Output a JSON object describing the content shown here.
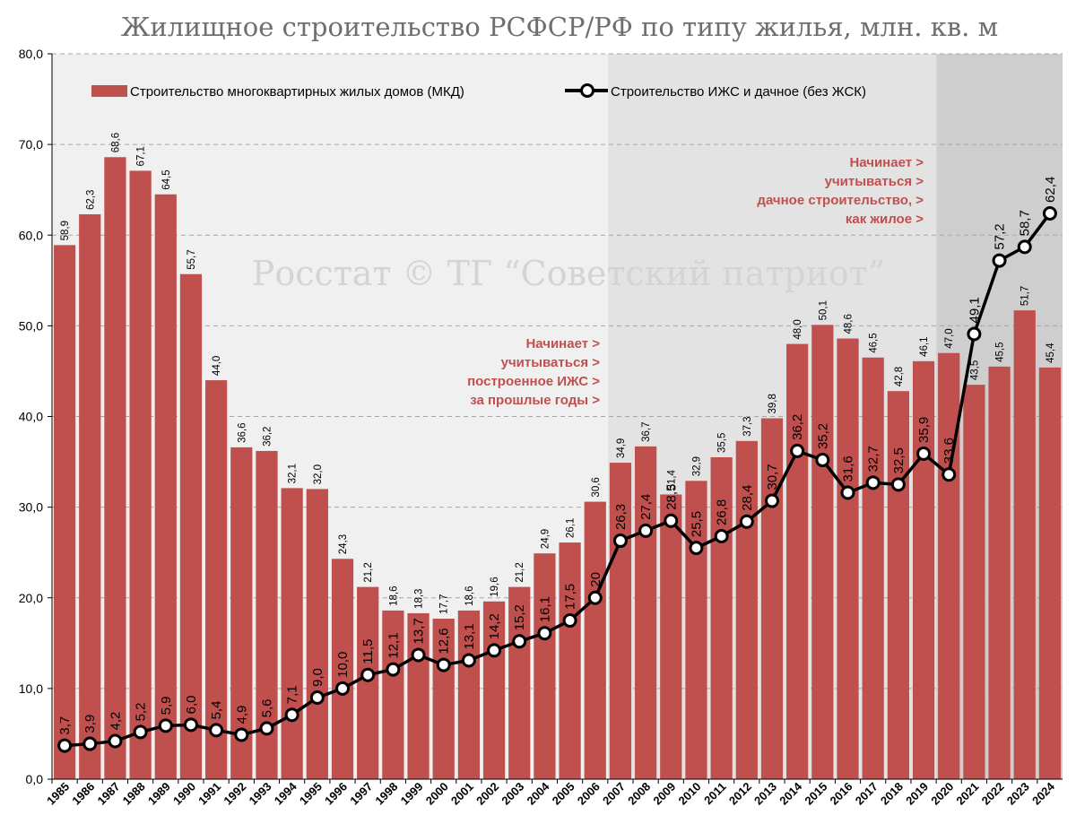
{
  "chart_data": {
    "type": "bar",
    "title": "Жилищное строительство РСФСР/РФ по типу жилья, млн. кв. м",
    "watermark": "Росстат © ТГ “Советский патриот”",
    "categories": [
      "1985",
      "1986",
      "1987",
      "1988",
      "1989",
      "1990",
      "1991",
      "1992",
      "1993",
      "1994",
      "1995",
      "1996",
      "1997",
      "1998",
      "1999",
      "2000",
      "2001",
      "2002",
      "2003",
      "2004",
      "2005",
      "2006",
      "2007",
      "2008",
      "2009",
      "2010",
      "2011",
      "2012",
      "2013",
      "2014",
      "2015",
      "2016",
      "2017",
      "2018",
      "2019",
      "2020",
      "2021",
      "2022",
      "2023",
      "2024"
    ],
    "series": [
      {
        "name": "Строительство многоквартирных жилых домов (МКД)",
        "kind": "bar",
        "color": "#c0504d",
        "values": [
          58.9,
          62.3,
          68.6,
          67.1,
          64.5,
          55.7,
          44.0,
          36.6,
          36.2,
          32.1,
          32.0,
          24.3,
          21.2,
          18.6,
          18.3,
          17.7,
          18.6,
          19.6,
          21.2,
          24.9,
          26.1,
          30.6,
          34.9,
          36.7,
          31.4,
          32.9,
          35.5,
          37.3,
          39.8,
          48.0,
          50.1,
          48.6,
          46.5,
          42.8,
          46.1,
          47.0,
          43.5,
          45.5,
          51.7,
          45.4
        ],
        "labels": [
          "58,9",
          "62,3",
          "68,6",
          "67,1",
          "64,5",
          "55,7",
          "44,0",
          "36,6",
          "36,2",
          "32,1",
          "32,0",
          "24,3",
          "21,2",
          "18,6",
          "18,3",
          "17,7",
          "18,6",
          "19,6",
          "21,2",
          "24,9",
          "26,1",
          "30,6",
          "34,9",
          "36,7",
          "31,4",
          "32,9",
          "35,5",
          "37,3",
          "39,8",
          "48,0",
          "50,1",
          "48,6",
          "46,5",
          "42,8",
          "46,1",
          "47,0",
          "43,5",
          "45,5",
          "51,7",
          "45,4"
        ]
      },
      {
        "name": "Строительство ИЖС и дачное (без ЖСК)",
        "kind": "line",
        "color": "#000000",
        "values": [
          3.7,
          3.9,
          4.2,
          5.2,
          5.9,
          6.0,
          5.4,
          4.9,
          5.6,
          7.1,
          9.0,
          10.0,
          11.5,
          12.1,
          13.7,
          12.6,
          13.1,
          14.2,
          15.2,
          16.1,
          17.5,
          20,
          26.3,
          27.4,
          28.5,
          25.5,
          26.8,
          28.4,
          30.7,
          36.2,
          35.2,
          31.6,
          32.7,
          32.5,
          35.9,
          33.6,
          49.1,
          57.2,
          58.7,
          62.4
        ],
        "labels": [
          "3,7",
          "3,9",
          "4,2",
          "5,2",
          "5,9",
          "6,0",
          "5,4",
          "4,9",
          "5,6",
          "7,1",
          "9,0",
          "10,0",
          "11,5",
          "12,1",
          "13,7",
          "12,6",
          "13,1",
          "14,2",
          "15,2",
          "16,1",
          "17,5",
          "20",
          "26,3",
          "27,4",
          "28,5",
          "25,5",
          "26,8",
          "28,4",
          "30,7",
          "36,2",
          "35,2",
          "31,6",
          "32,7",
          "32,5",
          "35,9",
          "33,6",
          "49,1",
          "57,2",
          "58,7",
          "62,4"
        ]
      }
    ],
    "ylim": [
      0,
      80
    ],
    "yticks": [
      "0,0",
      "10,0",
      "20,0",
      "30,0",
      "40,0",
      "50,0",
      "60,0",
      "70,0",
      "80,0"
    ],
    "grid": true,
    "legend_position": "top",
    "background_bands": [
      {
        "from": "1985",
        "to": "2006",
        "color": "#f0f0f0"
      },
      {
        "from": "2007",
        "to": "2019",
        "color": "#e3e3e3"
      },
      {
        "from": "2020",
        "to": "2024",
        "color": "#cecece"
      }
    ],
    "annotations": [
      {
        "id": "izhs",
        "lines": [
          "Начинает >",
          "учитываться >",
          "построенное ИЖС >",
          "за прошлые годы >"
        ],
        "color": "#c0504d"
      },
      {
        "id": "dacha",
        "lines": [
          "Начинает >",
          "учитываться >",
          "дачное строительство, >",
          "как жилое >"
        ],
        "color": "#c0504d"
      }
    ]
  }
}
